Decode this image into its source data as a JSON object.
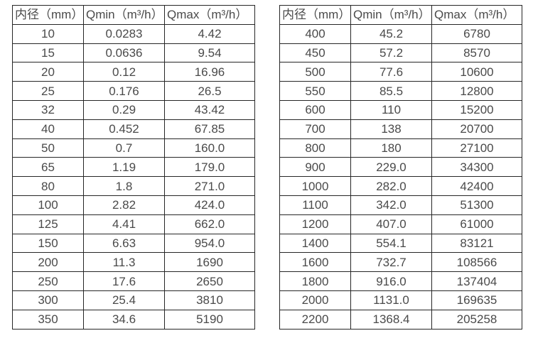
{
  "page": {
    "background_color": "#ffffff",
    "text_color": "#4a4a4a",
    "border_color": "#262626"
  },
  "tables": [
    {
      "name": "small-diameter-flow-table",
      "headers": [
        "内径（mm）",
        "Qmin（m³/h）",
        "Qmax（m³/h）"
      ],
      "rows": [
        [
          "10",
          "0.0283",
          "4.42"
        ],
        [
          "15",
          "0.0636",
          "9.54"
        ],
        [
          "20",
          "0.12",
          "16.96"
        ],
        [
          "25",
          "0.176",
          "26.5"
        ],
        [
          "32",
          "0.29",
          "43.42"
        ],
        [
          "40",
          "0.452",
          "67.85"
        ],
        [
          "50",
          "0.7",
          "160.0"
        ],
        [
          "65",
          "1.19",
          "179.0"
        ],
        [
          "80",
          "1.8",
          "271.0"
        ],
        [
          "100",
          "2.82",
          "424.0"
        ],
        [
          "125",
          "4.41",
          "662.0"
        ],
        [
          "150",
          "6.63",
          "954.0"
        ],
        [
          "200",
          "11.3",
          "1690"
        ],
        [
          "250",
          "17.6",
          "2650"
        ],
        [
          "300",
          "25.4",
          "3810"
        ],
        [
          "350",
          "34.6",
          "5190"
        ]
      ]
    },
    {
      "name": "large-diameter-flow-table",
      "headers": [
        "内径（mm）",
        "Qmin（m³/h）",
        "Qmax（m³/h）"
      ],
      "rows": [
        [
          "400",
          "45.2",
          "6780"
        ],
        [
          "450",
          "57.2",
          "8570"
        ],
        [
          "500",
          "77.6",
          "10600"
        ],
        [
          "550",
          "85.5",
          "12800"
        ],
        [
          "600",
          "110",
          "15200"
        ],
        [
          "700",
          "138",
          "20700"
        ],
        [
          "800",
          "180",
          "27100"
        ],
        [
          "900",
          "229.0",
          "34300"
        ],
        [
          "1000",
          "282.0",
          "42400"
        ],
        [
          "1100",
          "342.0",
          "51300"
        ],
        [
          "1200",
          "407.0",
          "61000"
        ],
        [
          "1400",
          "554.1",
          "83121"
        ],
        [
          "1600",
          "732.7",
          "108566"
        ],
        [
          "1800",
          "916.0",
          "137404"
        ],
        [
          "2000",
          "1131.0",
          "169635"
        ],
        [
          "2200",
          "1368.4",
          "205258"
        ]
      ]
    }
  ]
}
